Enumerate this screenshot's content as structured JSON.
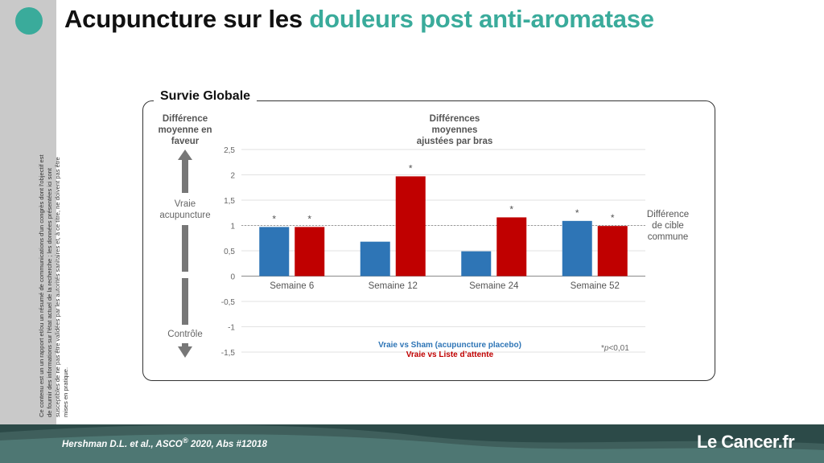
{
  "title": {
    "main": "Acupuncture sur les",
    "accent": "douleurs post anti-aromatase"
  },
  "panel": {
    "title": "Survie Globale",
    "left_header": [
      "Différence",
      "moyenne en",
      "faveur"
    ],
    "favor_label": [
      "Vraie",
      "acupuncture"
    ],
    "control_label": "Contrôle",
    "target_label": [
      "Différence",
      "de cible",
      "commune"
    ],
    "significance_note_prefix": "*",
    "significance_note_p": "p",
    "significance_note_rest": "<0,01"
  },
  "sidebar": {
    "disclaimer": "Ce contenu est un un rapport et/ou un résumé de communications d'un congrès dont l'objectif est de fournir des informations sur l'état actuel de la recherche ; les données présentées ici sont susceptibles de ne pas être validées par les autorités sanitaires et, à ce titre, ne doivent pas être mises en pratique."
  },
  "footer": {
    "citation_prefix": "Hershman D.L. et al., ASCO",
    "citation_sup": "®",
    "citation_suffix": " 2020, Abs #12018",
    "brand": "Le Cancer.fr"
  },
  "colors": {
    "accent": "#3aab9b",
    "blue": "#2e75b6",
    "red": "#c00000",
    "footer": "#2c4a48",
    "sidebar": "#c9c9c9"
  },
  "chart_data": {
    "type": "bar",
    "title": "Différences moyennes ajustées par bras",
    "title_lines": [
      "Différences",
      "moyennes",
      "ajustées par bras"
    ],
    "categories": [
      "Semaine 6",
      "Semaine 12",
      "Semaine 24",
      "Semaine 52"
    ],
    "series": [
      {
        "name": "Vraie vs Sham (acupuncture placebo)",
        "color": "#2e75b6",
        "values": [
          0.97,
          0.68,
          0.49,
          1.09
        ],
        "significant": [
          true,
          false,
          false,
          true
        ]
      },
      {
        "name": "Vraie vs Liste d’attente",
        "color": "#c00000",
        "values": [
          0.97,
          1.97,
          1.16,
          0.99
        ],
        "significant": [
          true,
          true,
          true,
          true
        ]
      }
    ],
    "ylim": [
      -1.5,
      2.5
    ],
    "yticks": [
      2.5,
      2,
      1.5,
      1,
      0.5,
      0,
      -0.5,
      -1,
      -1.5
    ],
    "ytick_labels": [
      "2,5",
      "2",
      "1,5",
      "1",
      "0,5",
      "0",
      "-0,5",
      "-1",
      "-1,5"
    ],
    "reference_line": 1,
    "marker": "*",
    "grid": true,
    "legend_position": "bottom"
  }
}
